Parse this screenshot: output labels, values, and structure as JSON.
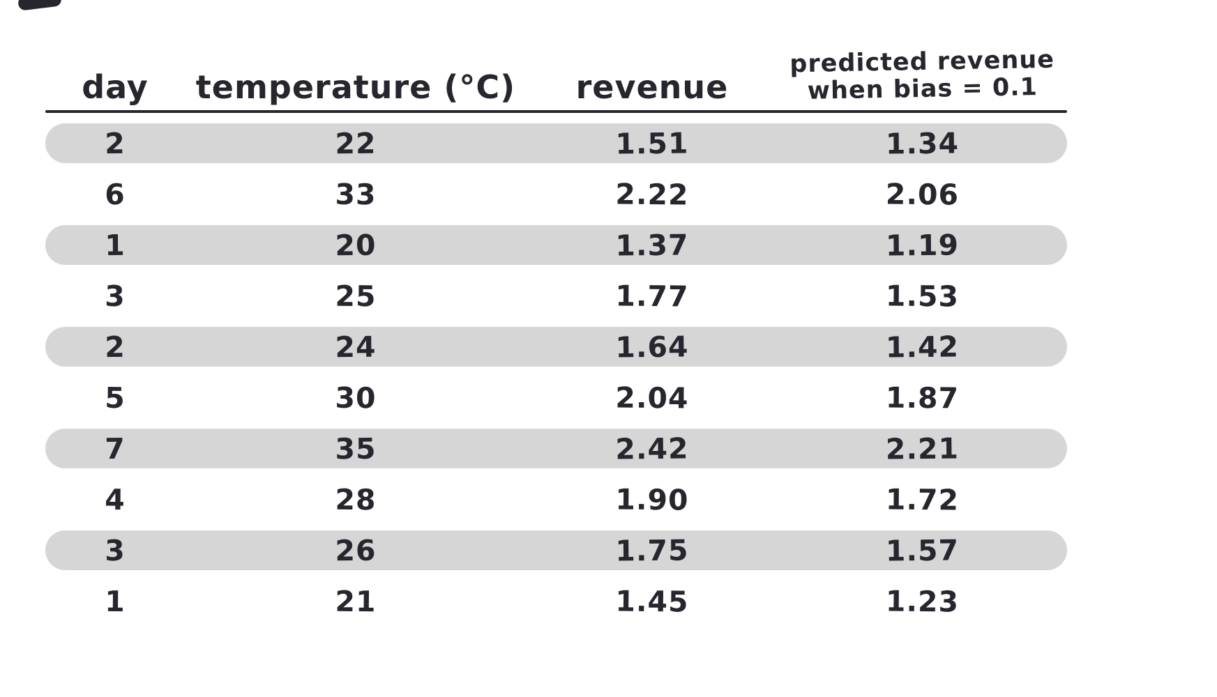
{
  "colors": {
    "background": "#ffffff",
    "ink": "#26262e",
    "row_highlight": "#d6d6d6"
  },
  "table": {
    "headers": {
      "day": "day",
      "temperature": "temperature (°C)",
      "revenue": "revenue",
      "predicted_line1": "predicted revenue",
      "predicted_line2": "when bias = 0.1"
    },
    "rows": [
      {
        "day": "2",
        "temperature": "22",
        "revenue": "1.51",
        "predicted": "1.34"
      },
      {
        "day": "6",
        "temperature": "33",
        "revenue": "2.22",
        "predicted": "2.06"
      },
      {
        "day": "1",
        "temperature": "20",
        "revenue": "1.37",
        "predicted": "1.19"
      },
      {
        "day": "3",
        "temperature": "25",
        "revenue": "1.77",
        "predicted": "1.53"
      },
      {
        "day": "2",
        "temperature": "24",
        "revenue": "1.64",
        "predicted": "1.42"
      },
      {
        "day": "5",
        "temperature": "30",
        "revenue": "2.04",
        "predicted": "1.87"
      },
      {
        "day": "7",
        "temperature": "35",
        "revenue": "2.42",
        "predicted": "2.21"
      },
      {
        "day": "4",
        "temperature": "28",
        "revenue": "1.90",
        "predicted": "1.72"
      },
      {
        "day": "3",
        "temperature": "26",
        "revenue": "1.75",
        "predicted": "1.57"
      },
      {
        "day": "1",
        "temperature": "21",
        "revenue": "1.45",
        "predicted": "1.23"
      }
    ]
  },
  "chart_data": {
    "type": "table",
    "title": "",
    "columns": [
      "day",
      "temperature (°C)",
      "revenue",
      "predicted revenue when bias = 0.1"
    ],
    "rows": [
      [
        2,
        22,
        1.51,
        1.34
      ],
      [
        6,
        33,
        2.22,
        2.06
      ],
      [
        1,
        20,
        1.37,
        1.19
      ],
      [
        3,
        25,
        1.77,
        1.53
      ],
      [
        2,
        24,
        1.64,
        1.42
      ],
      [
        5,
        30,
        2.04,
        1.87
      ],
      [
        7,
        35,
        2.42,
        2.21
      ],
      [
        4,
        28,
        1.9,
        1.72
      ],
      [
        3,
        26,
        1.75,
        1.57
      ],
      [
        1,
        21,
        1.45,
        1.23
      ]
    ],
    "highlighted_row_indices": [
      0,
      2,
      4,
      6,
      8
    ],
    "layout": {
      "grid": false,
      "zebra_highlight": "rounded gray bands on alternating rows"
    }
  }
}
